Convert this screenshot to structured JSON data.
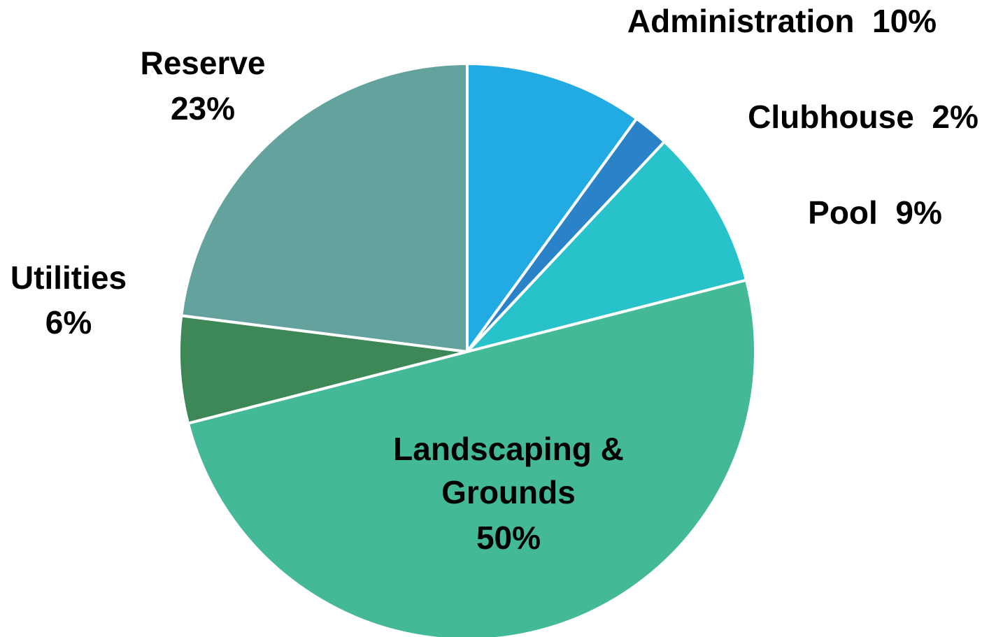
{
  "chart_data": {
    "type": "pie",
    "title": "",
    "start": "12 o'clock",
    "direction": "clockwise",
    "slices": [
      {
        "name": "Administration",
        "value": 10,
        "pct_label": "10%",
        "color": "#21ABE2"
      },
      {
        "name": "Clubhouse",
        "value": 2,
        "pct_label": "2%",
        "color": "#2A82C8"
      },
      {
        "name": "Pool",
        "value": 9,
        "pct_label": "9%",
        "color": "#28C2CB"
      },
      {
        "name": "Landscaping & Grounds",
        "value": 50,
        "pct_label": "50%",
        "color": "#44B998"
      },
      {
        "name": "Utilities",
        "value": 6,
        "pct_label": "6%",
        "color": "#3D8856"
      },
      {
        "name": "Reserve",
        "value": 23,
        "pct_label": "23%",
        "color": "#64A29E"
      }
    ]
  }
}
